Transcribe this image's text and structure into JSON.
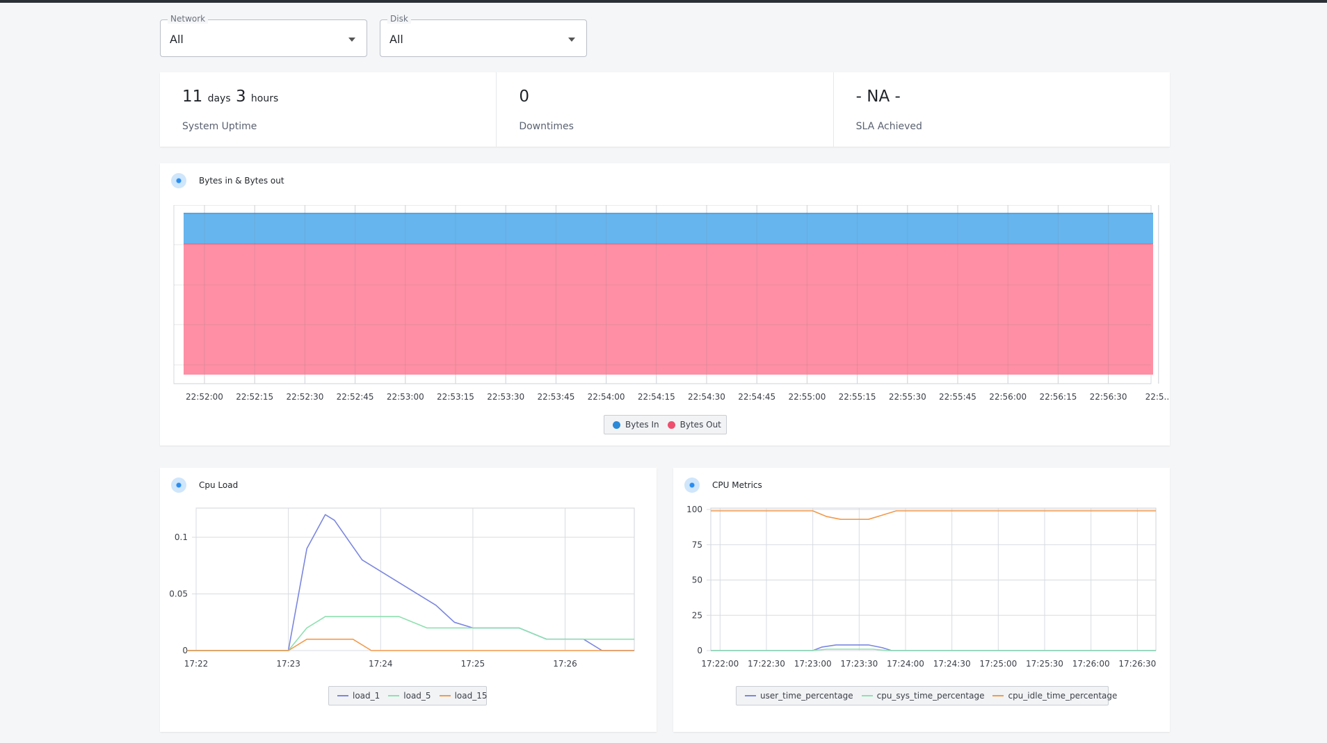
{
  "filters": {
    "network": {
      "label": "Network",
      "value": "All"
    },
    "disk": {
      "label": "Disk",
      "value": "All"
    }
  },
  "stats": {
    "uptime": {
      "days": "11",
      "days_unit": "days",
      "hours": "3",
      "hours_unit": "hours",
      "label": "System Uptime"
    },
    "downtimes": {
      "value": "0",
      "label": "Downtimes"
    },
    "sla": {
      "value": "- NA -",
      "label": "SLA Achieved"
    }
  },
  "panels": {
    "bytes": {
      "title": "Bytes in & Bytes out"
    },
    "cpu_load": {
      "title": "Cpu Load"
    },
    "cpu_metrics": {
      "title": "CPU Metrics"
    }
  },
  "colors": {
    "bytes_in": "#66b5ee",
    "bytes_out": "#ff899f",
    "load_1": "#7a86e0",
    "load_5": "#8ee0b0",
    "load_15": "#f2994a",
    "user_time": "#7a86e0",
    "sys_time": "#8ee0b0",
    "idle_time": "#f2994a"
  },
  "chart_data": [
    {
      "type": "area",
      "title": "Bytes in & Bytes out",
      "x": [
        "22:52:00",
        "22:52:15",
        "22:52:30",
        "22:52:45",
        "22:53:00",
        "22:53:15",
        "22:53:30",
        "22:53:45",
        "22:54:00",
        "22:54:15",
        "22:54:30",
        "22:54:45",
        "22:55:00",
        "22:55:15",
        "22:55:30",
        "22:55:45",
        "22:56:00",
        "22:56:15",
        "22:56:30",
        "22:5..."
      ],
      "series": [
        {
          "name": "Bytes In",
          "values": [
            1,
            1,
            1,
            1,
            1,
            1,
            1,
            1,
            1,
            1,
            1,
            1,
            1,
            1,
            1,
            1,
            1,
            1,
            1,
            1
          ]
        },
        {
          "name": "Bytes Out",
          "values": [
            4.3,
            4.3,
            4.3,
            4.3,
            4.3,
            4.3,
            4.3,
            4.3,
            4.3,
            4.3,
            4.3,
            4.3,
            4.3,
            4.3,
            4.3,
            4.3,
            4.3,
            4.3,
            4.3,
            4.3
          ]
        }
      ],
      "stacked": true,
      "grid": true,
      "legend": "bottom"
    },
    {
      "type": "line",
      "title": "Cpu Load",
      "x_ticks": [
        "17:22",
        "17:23",
        "17:24",
        "17:25",
        "17:26"
      ],
      "y_ticks": [
        "0",
        "0.05",
        "0.1"
      ],
      "xlim": [
        0,
        4.75
      ],
      "ylim": [
        0,
        0.1
      ],
      "series": [
        {
          "name": "load_1",
          "points": [
            [
              -0.1,
              0
            ],
            [
              1,
              0
            ],
            [
              1.2,
              0.09
            ],
            [
              1.4,
              0.12
            ],
            [
              1.5,
              0.115
            ],
            [
              1.8,
              0.08
            ],
            [
              2,
              0.07
            ],
            [
              2.3,
              0.055
            ],
            [
              2.6,
              0.04
            ],
            [
              2.8,
              0.025
            ],
            [
              3,
              0.02
            ],
            [
              3.5,
              0.02
            ],
            [
              3.8,
              0.01
            ],
            [
              4.2,
              0.01
            ],
            [
              4.4,
              0
            ],
            [
              4.75,
              0
            ]
          ]
        },
        {
          "name": "load_5",
          "points": [
            [
              -0.1,
              0
            ],
            [
              1,
              0
            ],
            [
              1.2,
              0.02
            ],
            [
              1.4,
              0.03
            ],
            [
              2.2,
              0.03
            ],
            [
              2.5,
              0.02
            ],
            [
              3.5,
              0.02
            ],
            [
              3.8,
              0.01
            ],
            [
              4.75,
              0.01
            ]
          ]
        },
        {
          "name": "load_15",
          "points": [
            [
              -0.1,
              0
            ],
            [
              1,
              0
            ],
            [
              1.2,
              0.01
            ],
            [
              1.5,
              0.01
            ],
            [
              1.7,
              0.01
            ],
            [
              1.9,
              0
            ],
            [
              4.75,
              0
            ]
          ]
        }
      ],
      "grid": true,
      "legend": "bottom"
    },
    {
      "type": "line",
      "title": "CPU Metrics",
      "x_ticks": [
        "17:22:00",
        "17:22:30",
        "17:23:00",
        "17:23:30",
        "17:24:00",
        "17:24:30",
        "17:25:00",
        "17:25:30",
        "17:26:00",
        "17:26:30"
      ],
      "y_ticks": [
        "0",
        "25",
        "50",
        "75",
        "100"
      ],
      "xlim": [
        -0.2,
        9.4
      ],
      "ylim": [
        0,
        100
      ],
      "series": [
        {
          "name": "user_time_percentage",
          "points": [
            [
              -0.2,
              0
            ],
            [
              2,
              0
            ],
            [
              2.2,
              2.5
            ],
            [
              2.5,
              4
            ],
            [
              3.2,
              4
            ],
            [
              3.5,
              2
            ],
            [
              3.7,
              0
            ],
            [
              9.4,
              0
            ]
          ]
        },
        {
          "name": "cpu_sys_time_percentage",
          "points": [
            [
              -0.2,
              0
            ],
            [
              2,
              0
            ],
            [
              2.3,
              1
            ],
            [
              3.3,
              1
            ],
            [
              3.6,
              0
            ],
            [
              9.4,
              0
            ]
          ]
        },
        {
          "name": "cpu_idle_time_percentage",
          "points": [
            [
              -0.2,
              99
            ],
            [
              2,
              99
            ],
            [
              2.3,
              95
            ],
            [
              2.6,
              93
            ],
            [
              3.2,
              93
            ],
            [
              3.5,
              96
            ],
            [
              3.8,
              99
            ],
            [
              9.4,
              99
            ]
          ]
        }
      ],
      "grid": true,
      "legend": "bottom"
    }
  ]
}
